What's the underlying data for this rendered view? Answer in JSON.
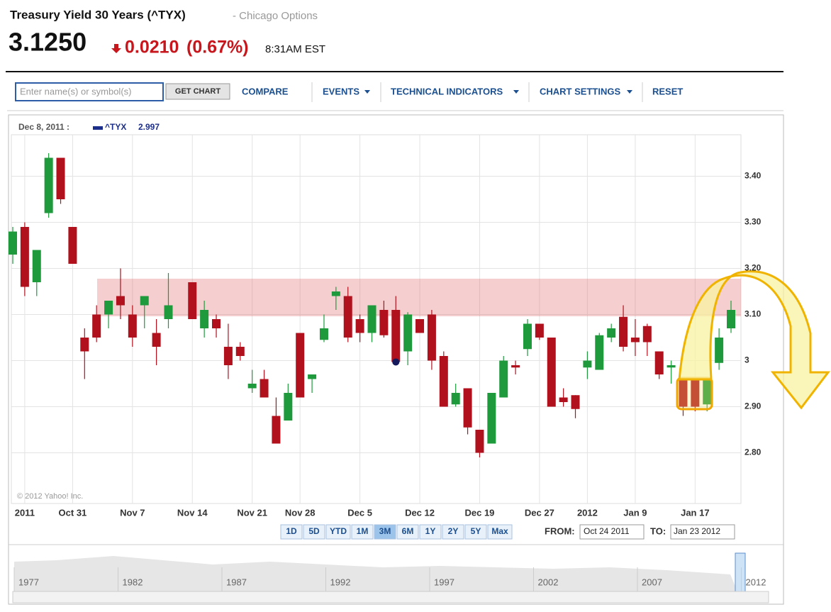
{
  "header": {
    "title": "Treasury Yield 30 Years (^TYX)",
    "source": "- Chicago Options",
    "price": "3.1250",
    "change": "0.0210",
    "change_percent": "(0.67%)",
    "time": "8:31AM EST"
  },
  "toolbar": {
    "placeholder": "Enter name(s) or symbol(s)",
    "button": "GET CHART",
    "items": [
      "COMPARE",
      "EVENTS",
      "TECHNICAL INDICATORS",
      "CHART SETTINGS",
      "RESET"
    ]
  },
  "chart_data": {
    "type": "candlestick",
    "tooltip": {
      "date": "Dec 8, 2011 :",
      "symbol": "^TYX",
      "value": 2.997
    },
    "categories": [
      null,
      "2011",
      null,
      null,
      null,
      "Oct 31",
      null,
      null,
      null,
      null,
      "Nov 7",
      null,
      null,
      null,
      null,
      "Nov 14",
      null,
      null,
      null,
      null,
      "Nov 21",
      null,
      null,
      null,
      "Nov 28",
      null,
      null,
      null,
      null,
      "Dec 5",
      null,
      null,
      null,
      null,
      "Dec 12",
      null,
      null,
      null,
      null,
      "Dec 19",
      null,
      null,
      null,
      null,
      "Dec 27",
      null,
      null,
      null,
      "2012",
      null,
      null,
      null,
      "Jan 9",
      null,
      null,
      null,
      null,
      "Jan 17",
      null,
      null,
      null
    ],
    "open": [
      3.23,
      3.29,
      3.17,
      3.32,
      3.44,
      3.29,
      3.05,
      3.1,
      3.1,
      3.14,
      3.1,
      3.12,
      3.06,
      3.09,
      null,
      3.17,
      3.07,
      3.09,
      3.03,
      3.03,
      2.94,
      2.96,
      2.88,
      2.87,
      3.06,
      2.96,
      3.045,
      3.14,
      3.14,
      3.09,
      3.06,
      3.11,
      3.11,
      3.02,
      3.09,
      3.1,
      3.01,
      2.905,
      2.94,
      2.85,
      2.82,
      2.92,
      2.99,
      3.025,
      3.08,
      3.05,
      2.92,
      2.925,
      2.985,
      2.98,
      3.05,
      3.095,
      3.05,
      3.075,
      3.02,
      2.985,
      2.96,
      2.96,
      2.905,
      2.995,
      3.07
    ],
    "high": [
      3.29,
      3.3,
      3.24,
      3.45,
      3.44,
      3.29,
      3.07,
      3.12,
      3.13,
      3.2,
      3.12,
      3.14,
      3.09,
      3.19,
      null,
      3.17,
      3.13,
      3.1,
      3.08,
      3.04,
      2.98,
      2.98,
      2.92,
      2.95,
      3.06,
      2.97,
      3.1,
      3.16,
      3.16,
      3.1,
      3.12,
      3.13,
      3.14,
      3.105,
      3.09,
      3.11,
      3.02,
      2.95,
      2.94,
      2.85,
      2.93,
      3.01,
      3.0,
      3.09,
      3.08,
      3.05,
      2.94,
      2.925,
      3.02,
      3.06,
      3.08,
      3.12,
      3.09,
      3.08,
      3.02,
      3.0,
      2.96,
      2.96,
      2.96,
      3.07,
      3.13
    ],
    "low": [
      3.21,
      3.14,
      3.14,
      3.31,
      3.34,
      3.21,
      2.96,
      3.04,
      3.07,
      3.09,
      3.03,
      3.07,
      2.99,
      3.07,
      null,
      3.09,
      3.05,
      3.05,
      2.96,
      3.0,
      2.93,
      2.92,
      2.82,
      2.87,
      2.92,
      2.93,
      3.04,
      3.11,
      3.04,
      3.04,
      3.04,
      3.05,
      2.99,
      2.99,
      3.06,
      2.98,
      2.9,
      2.9,
      2.84,
      2.79,
      2.82,
      2.92,
      2.97,
      3.01,
      3.045,
      2.9,
      2.9,
      2.875,
      2.96,
      2.98,
      3.04,
      3.02,
      3.01,
      3.01,
      2.96,
      2.95,
      2.88,
      2.89,
      2.89,
      2.98,
      3.06
    ],
    "close": [
      3.28,
      3.16,
      3.24,
      3.44,
      3.35,
      3.21,
      3.02,
      3.05,
      3.13,
      3.12,
      3.05,
      3.14,
      3.03,
      3.12,
      null,
      3.09,
      3.11,
      3.07,
      2.99,
      3.01,
      2.95,
      2.92,
      2.82,
      2.93,
      2.92,
      2.97,
      3.07,
      3.15,
      3.05,
      3.06,
      3.12,
      3.055,
      2.997,
      3.1,
      3.06,
      3.0,
      2.9,
      2.93,
      2.855,
      2.8,
      2.93,
      3.0,
      2.985,
      3.08,
      3.05,
      2.9,
      2.91,
      2.895,
      3.0,
      3.055,
      3.07,
      3.03,
      3.04,
      3.04,
      2.97,
      2.99,
      2.9,
      2.9,
      2.96,
      3.05,
      3.11
    ],
    "up_color": "#1e9a3c",
    "down_color": "#b0111d",
    "ylim": [
      2.69,
      3.49
    ],
    "yticks": [
      {
        "value": 2.8,
        "label": "2.80"
      },
      {
        "value": 2.9,
        "label": "2.90"
      },
      3,
      {
        "value": 3.1,
        "label": "3.10"
      },
      {
        "value": 3.2,
        "label": "3.20"
      },
      {
        "value": 3.3,
        "label": "3.30"
      },
      {
        "value": 3.4,
        "label": "3.40"
      }
    ],
    "grid": true,
    "copyright": "© 2012 Yahoo! Inc."
  },
  "range_buttons": [
    "1D",
    "5D",
    "YTD",
    "1M",
    "3M",
    "6M",
    "1Y",
    "2Y",
    "5Y",
    "Max"
  ],
  "selected_range": "3M",
  "date_range": {
    "from_label": "FROM:",
    "from": "Oct 24 2011",
    "to_label": "TO:",
    "to": "Jan 23 2012"
  },
  "navigator": {
    "years": [
      "1977",
      "1982",
      "1987",
      "1992",
      "1997",
      "2002",
      "2007",
      "2012"
    ]
  }
}
